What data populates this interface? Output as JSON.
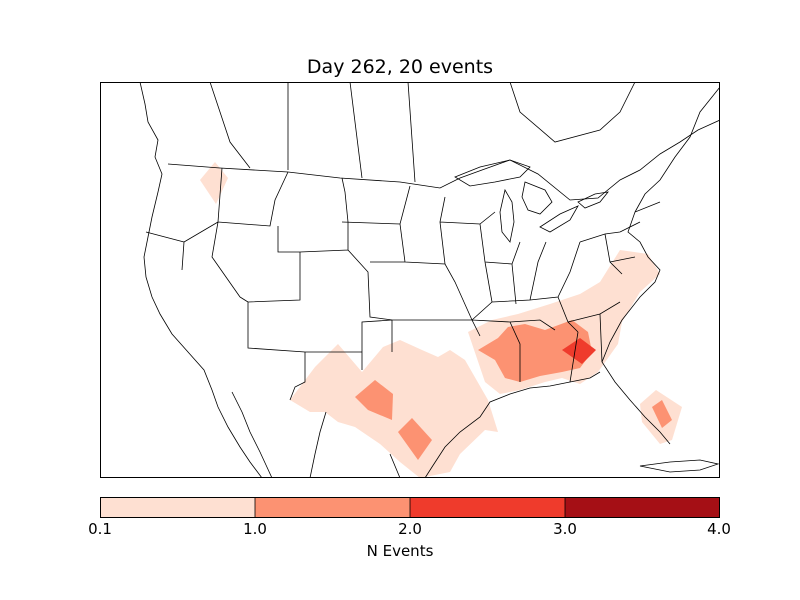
{
  "title": "Day 262, 20 events",
  "colorbar": {
    "label": "N Events",
    "ticks": [
      "0.1",
      "1.0",
      "2.0",
      "3.0",
      "4.0"
    ],
    "bins": [
      {
        "range": "0.1-1.0",
        "color": "#fee0d2"
      },
      {
        "range": "1.0-2.0",
        "color": "#fc9272"
      },
      {
        "range": "2.0-3.0",
        "color": "#ef3b2c"
      },
      {
        "range": "3.0-4.0",
        "color": "#a50f15"
      }
    ]
  },
  "colors": {
    "light": "#fee0d2",
    "medium": "#fc9272",
    "dark": "#ef3b2c",
    "border": "#000000"
  }
}
